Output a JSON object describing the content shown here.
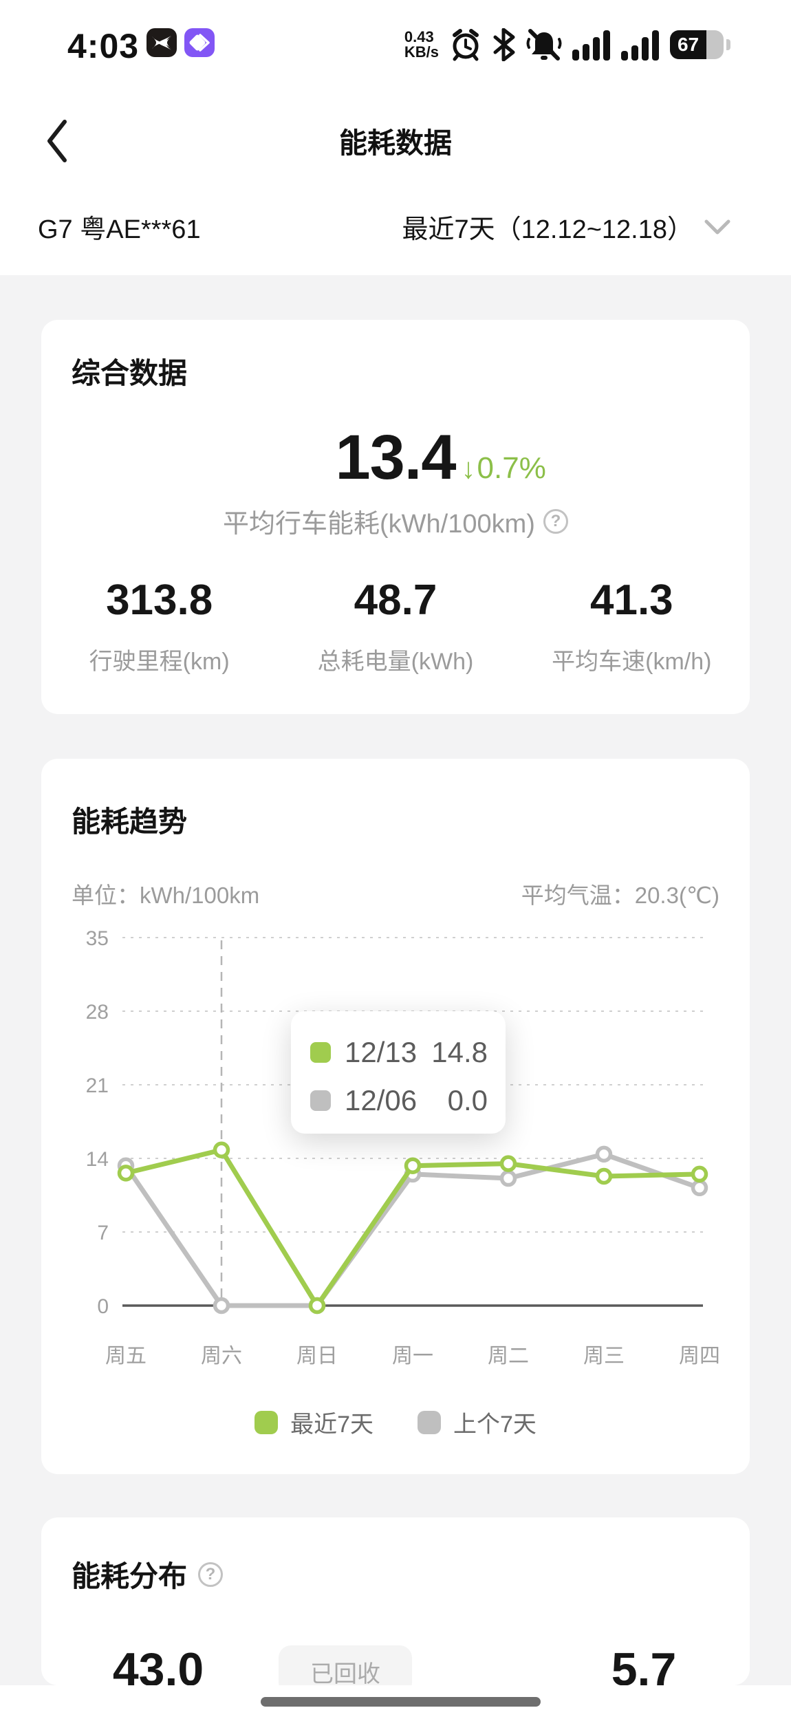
{
  "colors": {
    "accent_green": "#a0cc4e",
    "series_gray": "#bfbfbf",
    "page_bg": "#f3f3f4",
    "secondary_text": "#9b9b9b"
  },
  "status_bar": {
    "time": "4:03",
    "net_speed_value": "0.43",
    "net_speed_unit": "KB/s",
    "battery_percent": "67"
  },
  "header": {
    "title": "能耗数据"
  },
  "selector": {
    "vehicle": "G7 粤AE***61",
    "range": "最近7天（12.12~12.18）"
  },
  "summary_card": {
    "title": "综合数据",
    "main_value": "13.4",
    "delta_arrow": "↓",
    "delta_pct": "0.7%",
    "main_label": "平均行车能耗(kWh/100km)",
    "q_mark": "?",
    "stats": [
      {
        "value": "313.8",
        "label": "行驶里程(km)"
      },
      {
        "value": "48.7",
        "label": "总耗电量(kWh)"
      },
      {
        "value": "41.3",
        "label": "平均车速(km/h)"
      }
    ]
  },
  "trend_card": {
    "title": "能耗趋势",
    "unit_label": "单位：kWh/100km",
    "temp_label": "平均气温：20.3(℃)",
    "tooltip": {
      "rows": [
        {
          "color": "#a0cc4e",
          "date": "12/13",
          "value": "14.8"
        },
        {
          "color": "#bfbfbf",
          "date": "12/06",
          "value": "0.0"
        }
      ]
    },
    "legend": [
      {
        "label": "最近7天",
        "color": "#a0cc4e"
      },
      {
        "label": "上个7天",
        "color": "#bfbfbf"
      }
    ]
  },
  "chart_data": {
    "type": "line",
    "categories": [
      "周五",
      "周六",
      "周日",
      "周一",
      "周二",
      "周三",
      "周四"
    ],
    "series": [
      {
        "name": "上个7天",
        "color": "#bfbfbf",
        "values": [
          13.3,
          0.0,
          0.0,
          12.5,
          12.1,
          14.4,
          11.2
        ]
      },
      {
        "name": "最近7天",
        "color": "#a0cc4e",
        "values": [
          12.6,
          14.8,
          0.0,
          13.3,
          13.5,
          12.3,
          12.5
        ]
      }
    ],
    "title": "能耗趋势",
    "xlabel": "",
    "ylabel": "kWh/100km",
    "y_ticks": [
      0,
      7,
      14,
      21,
      28,
      35
    ],
    "ylim": [
      0,
      35
    ],
    "grid": "dashed-horizontal",
    "highlight_index": 1,
    "legend_position": "bottom"
  },
  "distribution_card": {
    "title": "能耗分布",
    "q_mark": "?",
    "left_value": "43.0",
    "pill_label": "已回收",
    "right_value": "5.7"
  }
}
